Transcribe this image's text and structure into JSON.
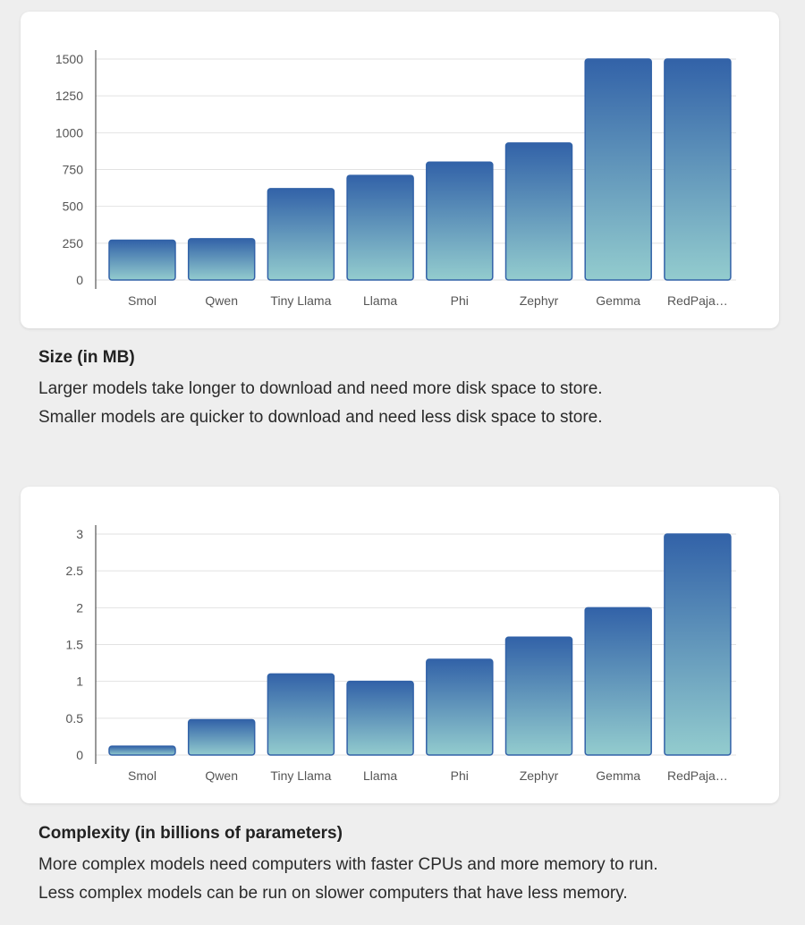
{
  "colors": {
    "bar_top": "#3262a8",
    "bar_bottom": "#93ccce",
    "grid": "#e2e2e2",
    "axis": "#333333",
    "background": "#eeeeee",
    "card": "#ffffff"
  },
  "chart_data": [
    {
      "type": "bar",
      "title": "Size (in MB)",
      "categories": [
        "Smol",
        "Qwen",
        "Tiny Llama",
        "Llama",
        "Phi",
        "Zephyr",
        "Gemma",
        "RedPaja…"
      ],
      "values": [
        270,
        280,
        620,
        710,
        800,
        930,
        1500,
        1500
      ],
      "ylim": [
        0,
        1500
      ],
      "yticks": [
        0,
        250,
        500,
        750,
        1000,
        1250,
        1500
      ],
      "ytick_labels": [
        "0",
        "250",
        "500",
        "750",
        "1000",
        "1250",
        "1500"
      ],
      "xlabel": "",
      "ylabel": "",
      "grid": true
    },
    {
      "type": "bar",
      "title": "Complexity (in billions of parameters)",
      "categories": [
        "Smol",
        "Qwen",
        "Tiny Llama",
        "Llama",
        "Phi",
        "Zephyr",
        "Gemma",
        "RedPaja…"
      ],
      "values": [
        0.12,
        0.48,
        1.1,
        1.0,
        1.3,
        1.6,
        2.0,
        3.0
      ],
      "ylim": [
        0,
        3
      ],
      "yticks": [
        0,
        0.5,
        1,
        1.5,
        2,
        2.5,
        3
      ],
      "ytick_labels": [
        "0",
        "0.5",
        "1",
        "1.5",
        "2",
        "2.5",
        "3"
      ],
      "xlabel": "",
      "ylabel": "",
      "grid": true
    }
  ],
  "sections": [
    {
      "heading": "Size (in MB)",
      "lines": [
        "Larger models take longer to download and need more disk space to store.",
        "Smaller models are quicker to download and need less disk space to store."
      ]
    },
    {
      "heading": "Complexity (in billions of parameters)",
      "lines": [
        "More complex models need computers with faster CPUs and more memory to run.",
        "Less complex models can be run on slower computers that have less memory."
      ]
    }
  ]
}
